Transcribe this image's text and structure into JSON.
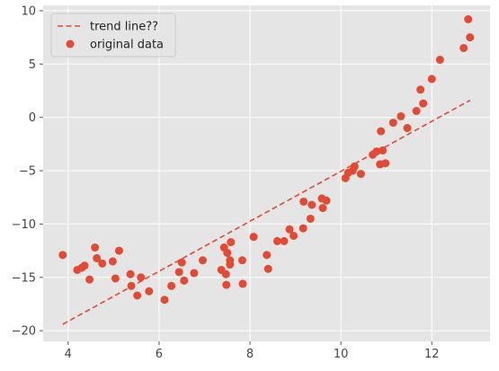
{
  "chart_data": {
    "type": "scatter",
    "title": "",
    "xlabel": "",
    "ylabel": "",
    "xlim": [
      3.45,
      13.28
    ],
    "ylim": [
      -21.0,
      10.5
    ],
    "xticks": [
      4,
      6,
      8,
      10,
      12
    ],
    "yticks": [
      -20,
      -15,
      -10,
      -5,
      0,
      5,
      10
    ],
    "grid": true,
    "legend_placement": "top-left",
    "colors": {
      "series": "#e24a33",
      "plot_bg": "#e5e5e5",
      "grid": "#ffffff"
    },
    "series": [
      {
        "name": "trend line??",
        "kind": "line",
        "style": "dashed",
        "x": [
          3.88,
          12.84
        ],
        "y": [
          -19.4,
          1.6
        ]
      },
      {
        "name": "original data",
        "kind": "scatter",
        "points": [
          [
            3.88,
            -12.9
          ],
          [
            4.2,
            -14.3
          ],
          [
            4.3,
            -14.1
          ],
          [
            4.36,
            -13.9
          ],
          [
            4.47,
            -15.2
          ],
          [
            4.59,
            -12.2
          ],
          [
            4.63,
            -13.2
          ],
          [
            4.75,
            -13.7
          ],
          [
            4.98,
            -13.5
          ],
          [
            5.04,
            -15.1
          ],
          [
            5.12,
            -12.5
          ],
          [
            5.37,
            -14.7
          ],
          [
            5.39,
            -15.8
          ],
          [
            5.52,
            -16.7
          ],
          [
            5.6,
            -15.0
          ],
          [
            5.78,
            -16.3
          ],
          [
            6.12,
            -17.1
          ],
          [
            6.27,
            -15.8
          ],
          [
            6.44,
            -14.5
          ],
          [
            6.5,
            -13.6
          ],
          [
            6.55,
            -15.3
          ],
          [
            6.77,
            -14.6
          ],
          [
            6.96,
            -13.4
          ],
          [
            7.37,
            -14.3
          ],
          [
            7.43,
            -12.2
          ],
          [
            7.47,
            -14.7
          ],
          [
            7.48,
            -15.7
          ],
          [
            7.5,
            -12.7
          ],
          [
            7.56,
            -13.8
          ],
          [
            7.56,
            -13.4
          ],
          [
            7.58,
            -11.7
          ],
          [
            7.83,
            -13.4
          ],
          [
            7.84,
            -15.6
          ],
          [
            8.08,
            -11.2
          ],
          [
            8.37,
            -12.9
          ],
          [
            8.4,
            -14.2
          ],
          [
            8.6,
            -11.6
          ],
          [
            8.75,
            -11.6
          ],
          [
            8.87,
            -10.5
          ],
          [
            8.96,
            -11.1
          ],
          [
            9.17,
            -10.4
          ],
          [
            9.18,
            -7.9
          ],
          [
            9.33,
            -9.5
          ],
          [
            9.36,
            -8.2
          ],
          [
            9.58,
            -7.6
          ],
          [
            9.6,
            -8.5
          ],
          [
            9.68,
            -7.8
          ],
          [
            10.1,
            -5.7
          ],
          [
            10.16,
            -5.2
          ],
          [
            10.26,
            -5.0
          ],
          [
            10.3,
            -4.6
          ],
          [
            10.44,
            -5.3
          ],
          [
            10.7,
            -3.5
          ],
          [
            10.78,
            -3.2
          ],
          [
            10.86,
            -4.4
          ],
          [
            10.88,
            -1.3
          ],
          [
            10.92,
            -3.1
          ],
          [
            10.98,
            -4.3
          ],
          [
            11.15,
            -0.5
          ],
          [
            11.32,
            0.1
          ],
          [
            11.46,
            -1.0
          ],
          [
            11.66,
            0.6
          ],
          [
            11.75,
            2.6
          ],
          [
            11.81,
            1.3
          ],
          [
            12.0,
            3.6
          ],
          [
            12.18,
            5.4
          ],
          [
            12.7,
            6.5
          ],
          [
            12.8,
            9.2
          ],
          [
            12.84,
            7.5
          ]
        ]
      }
    ]
  }
}
